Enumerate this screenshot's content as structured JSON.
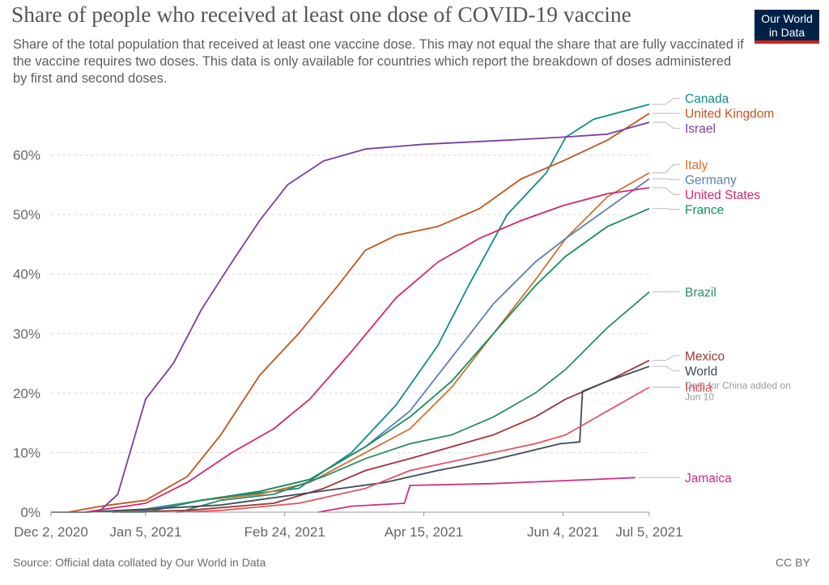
{
  "title": "Share of people who received at least one dose of COVID-19 vaccine",
  "subtitle": "Share of the total population that received at least one vaccine dose. This may not equal the share that are fully vaccinated if the vaccine requires two doses. This data is only available for countries which report the breakdown of doses administered by first and second doses.",
  "logo": {
    "line1": "Our World",
    "line2": "in Data",
    "bg_color": "#002147",
    "accent_color": "#ce261e"
  },
  "source": "Source: Official data collated by Our World in Data",
  "license": "CC BY",
  "chart_data": {
    "type": "line",
    "title": "Share of people who received at least one dose of COVID-19 vaccine",
    "xlabel": "",
    "ylabel": "",
    "x_ticks": [
      "Dec 2, 2020",
      "Jan 5, 2021",
      "Feb 24, 2021",
      "Apr 15, 2021",
      "Jun 4, 2021",
      "Jul 5, 2021"
    ],
    "x_range": [
      "2020-12-02",
      "2021-07-05"
    ],
    "y_ticks": [
      "0%",
      "10%",
      "20%",
      "30%",
      "40%",
      "50%",
      "60%"
    ],
    "y_range": [
      0,
      70
    ],
    "grid": "horizontal dashed",
    "legend": "right, labels at line ends",
    "series": [
      {
        "name": "Canada",
        "color": "#0f8d88",
        "points": [
          [
            "2020-12-14",
            0
          ],
          [
            "2021-01-05",
            0.5
          ],
          [
            "2021-02-01",
            2.5
          ],
          [
            "2021-03-01",
            4
          ],
          [
            "2021-03-20",
            10
          ],
          [
            "2021-04-05",
            18
          ],
          [
            "2021-04-20",
            28
          ],
          [
            "2021-05-01",
            38
          ],
          [
            "2021-05-15",
            50
          ],
          [
            "2021-05-29",
            57
          ],
          [
            "2021-06-05",
            63
          ],
          [
            "2021-06-15",
            66
          ],
          [
            "2021-07-05",
            68.5
          ]
        ]
      },
      {
        "name": "United Kingdom",
        "color": "#c2551f",
        "points": [
          [
            "2020-12-08",
            0
          ],
          [
            "2020-12-20",
            1
          ],
          [
            "2021-01-05",
            2
          ],
          [
            "2021-01-20",
            6
          ],
          [
            "2021-02-01",
            13
          ],
          [
            "2021-02-15",
            23
          ],
          [
            "2021-03-01",
            30
          ],
          [
            "2021-03-15",
            38
          ],
          [
            "2021-03-25",
            44
          ],
          [
            "2021-04-05",
            46.5
          ],
          [
            "2021-04-20",
            48
          ],
          [
            "2021-05-05",
            51
          ],
          [
            "2021-05-20",
            56
          ],
          [
            "2021-06-04",
            59
          ],
          [
            "2021-06-20",
            62.5
          ],
          [
            "2021-07-05",
            67
          ]
        ]
      },
      {
        "name": "Israel",
        "color": "#7a3fa0",
        "points": [
          [
            "2020-12-19",
            0
          ],
          [
            "2020-12-26",
            3
          ],
          [
            "2021-01-05",
            19
          ],
          [
            "2021-01-15",
            25
          ],
          [
            "2021-01-25",
            34
          ],
          [
            "2021-02-05",
            42
          ],
          [
            "2021-02-15",
            49
          ],
          [
            "2021-02-25",
            55
          ],
          [
            "2021-03-10",
            59
          ],
          [
            "2021-03-25",
            61
          ],
          [
            "2021-04-15",
            61.8
          ],
          [
            "2021-05-15",
            62.5
          ],
          [
            "2021-06-04",
            63
          ],
          [
            "2021-06-20",
            63.5
          ],
          [
            "2021-07-05",
            65.5
          ]
        ]
      },
      {
        "name": "Italy",
        "color": "#d0702f",
        "points": [
          [
            "2020-12-27",
            0
          ],
          [
            "2021-01-05",
            0.3
          ],
          [
            "2021-01-25",
            2
          ],
          [
            "2021-02-15",
            3
          ],
          [
            "2021-03-05",
            5
          ],
          [
            "2021-03-25",
            10
          ],
          [
            "2021-04-10",
            14
          ],
          [
            "2021-04-25",
            21
          ],
          [
            "2021-05-10",
            30
          ],
          [
            "2021-05-25",
            39
          ],
          [
            "2021-06-05",
            46
          ],
          [
            "2021-06-20",
            53
          ],
          [
            "2021-07-05",
            57
          ]
        ]
      },
      {
        "name": "Germany",
        "color": "#5d7fad",
        "points": [
          [
            "2020-12-27",
            0
          ],
          [
            "2021-01-05",
            0.3
          ],
          [
            "2021-01-25",
            2
          ],
          [
            "2021-02-15",
            3.5
          ],
          [
            "2021-03-05",
            5.5
          ],
          [
            "2021-03-25",
            11
          ],
          [
            "2021-04-10",
            17
          ],
          [
            "2021-04-25",
            26
          ],
          [
            "2021-05-10",
            35
          ],
          [
            "2021-05-25",
            42
          ],
          [
            "2021-06-05",
            46
          ],
          [
            "2021-06-20",
            51
          ],
          [
            "2021-07-05",
            56
          ]
        ]
      },
      {
        "name": "United States",
        "color": "#d4266f",
        "points": [
          [
            "2020-12-14",
            0
          ],
          [
            "2021-01-05",
            1.5
          ],
          [
            "2021-01-20",
            5
          ],
          [
            "2021-02-05",
            10
          ],
          [
            "2021-02-20",
            14
          ],
          [
            "2021-03-05",
            19
          ],
          [
            "2021-03-20",
            27
          ],
          [
            "2021-04-05",
            36
          ],
          [
            "2021-04-20",
            42
          ],
          [
            "2021-05-05",
            46
          ],
          [
            "2021-05-20",
            49
          ],
          [
            "2021-06-04",
            51.5
          ],
          [
            "2021-06-20",
            53.5
          ],
          [
            "2021-07-05",
            54.5
          ]
        ]
      },
      {
        "name": "France",
        "color": "#158e5a",
        "points": [
          [
            "2020-12-27",
            0
          ],
          [
            "2021-01-05",
            0
          ],
          [
            "2021-01-25",
            2
          ],
          [
            "2021-02-15",
            3.5
          ],
          [
            "2021-03-05",
            5.5
          ],
          [
            "2021-03-25",
            11
          ],
          [
            "2021-04-10",
            16
          ],
          [
            "2021-04-25",
            22
          ],
          [
            "2021-05-10",
            30
          ],
          [
            "2021-05-25",
            38
          ],
          [
            "2021-06-05",
            43
          ],
          [
            "2021-06-20",
            48
          ],
          [
            "2021-07-05",
            51
          ]
        ]
      },
      {
        "name": "Brazil",
        "color": "#2e8a6e",
        "points": [
          [
            "2021-01-17",
            0
          ],
          [
            "2021-02-01",
            2
          ],
          [
            "2021-02-20",
            3
          ],
          [
            "2021-03-10",
            6
          ],
          [
            "2021-03-25",
            9
          ],
          [
            "2021-04-10",
            11.5
          ],
          [
            "2021-04-25",
            13
          ],
          [
            "2021-05-10",
            16
          ],
          [
            "2021-05-25",
            20
          ],
          [
            "2021-06-05",
            24
          ],
          [
            "2021-06-20",
            31
          ],
          [
            "2021-07-05",
            37
          ]
        ]
      },
      {
        "name": "Mexico",
        "color": "#9e3638",
        "points": [
          [
            "2020-12-24",
            0
          ],
          [
            "2021-01-20",
            0.3
          ],
          [
            "2021-02-20",
            1.5
          ],
          [
            "2021-03-10",
            4
          ],
          [
            "2021-03-25",
            7
          ],
          [
            "2021-04-10",
            9
          ],
          [
            "2021-04-25",
            11
          ],
          [
            "2021-05-10",
            13
          ],
          [
            "2021-05-25",
            16
          ],
          [
            "2021-06-05",
            19
          ],
          [
            "2021-06-20",
            22
          ],
          [
            "2021-07-05",
            25.5
          ]
        ]
      },
      {
        "name": "World",
        "color": "#3f4a5c",
        "points": [
          [
            "2020-12-02",
            0
          ],
          [
            "2020-12-15",
            0
          ],
          [
            "2021-01-05",
            0.5
          ],
          [
            "2021-02-01",
            1.2
          ],
          [
            "2021-03-01",
            3
          ],
          [
            "2021-04-01",
            5
          ],
          [
            "2021-04-20",
            7
          ],
          [
            "2021-05-10",
            8.8
          ],
          [
            "2021-06-03",
            11.5
          ],
          [
            "2021-06-10",
            11.8
          ],
          [
            "2021-06-11",
            20.3
          ],
          [
            "2021-06-20",
            22
          ],
          [
            "2021-07-05",
            24.5
          ]
        ]
      },
      {
        "name": "India",
        "color": "#e0565f",
        "points": [
          [
            "2021-01-16",
            0
          ],
          [
            "2021-02-01",
            0.3
          ],
          [
            "2021-03-01",
            1.5
          ],
          [
            "2021-03-25",
            4
          ],
          [
            "2021-04-10",
            7
          ],
          [
            "2021-04-25",
            8.5
          ],
          [
            "2021-05-10",
            10
          ],
          [
            "2021-05-25",
            11.5
          ],
          [
            "2021-06-05",
            13
          ],
          [
            "2021-06-20",
            17
          ],
          [
            "2021-07-05",
            21
          ]
        ]
      },
      {
        "name": "Jamaica",
        "color": "#cb2f83",
        "points": [
          [
            "2021-03-08",
            0
          ],
          [
            "2021-03-20",
            1
          ],
          [
            "2021-04-08",
            1.5
          ],
          [
            "2021-04-10",
            4.5
          ],
          [
            "2021-05-10",
            4.8
          ],
          [
            "2021-06-05",
            5.3
          ],
          [
            "2021-06-30",
            5.8
          ]
        ]
      }
    ],
    "annotation": "Data for China added on Jun 10"
  }
}
